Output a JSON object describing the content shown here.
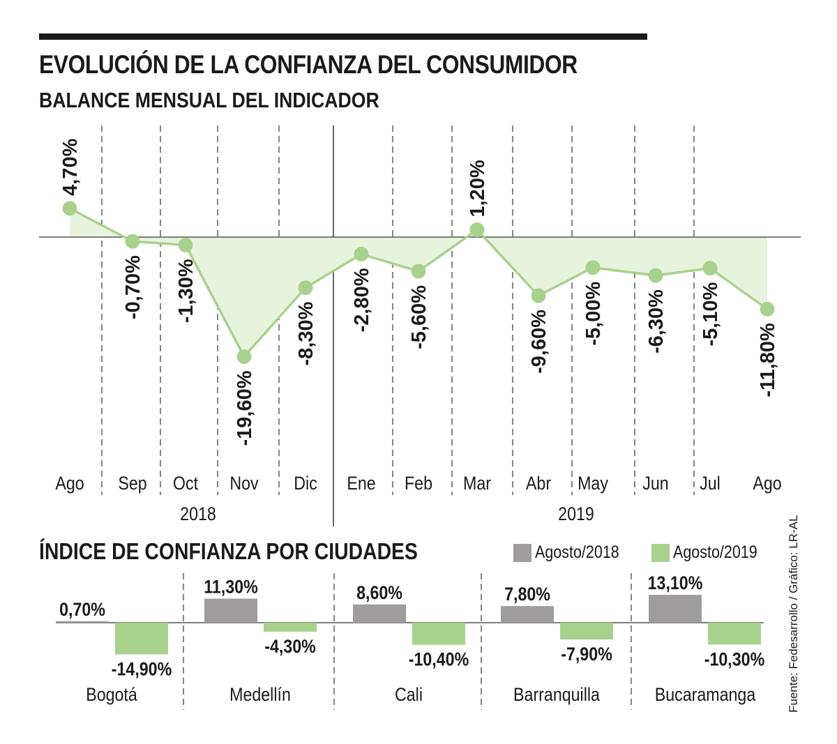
{
  "header": {
    "title": "EVOLUCIÓN DE LA CONFIANZA DEL CONSUMIDOR",
    "subtitle": "BALANCE MENSUAL DEL INDICADOR"
  },
  "cities_section": {
    "title": "ÍNDICE DE CONFIANZA POR CIUDADES",
    "legend": [
      {
        "label": "Agosto/2018",
        "color": "#a09c9e"
      },
      {
        "label": "Agosto/2019",
        "color": "#a9d18e"
      }
    ]
  },
  "source": "Fuente: Fedesarrollo / Gráfico: LR-AL",
  "colors": {
    "line": "#a9d18e",
    "area": "#e8f3de",
    "gray_bar": "#a09c9e",
    "green_bar": "#a9d18e",
    "text": "#1a1a1a"
  },
  "chart_data": [
    {
      "type": "line",
      "title": "BALANCE MENSUAL DEL INDICADOR",
      "categories": [
        "Ago",
        "Sep",
        "Oct",
        "Nov",
        "Dic",
        "Ene",
        "Feb",
        "Mar",
        "Abr",
        "May",
        "Jun",
        "Jul",
        "Ago"
      ],
      "years": [
        {
          "label": "2018",
          "months": [
            "Ago",
            "Sep",
            "Oct",
            "Nov",
            "Dic"
          ]
        },
        {
          "label": "2019",
          "months": [
            "Ene",
            "Feb",
            "Mar",
            "Abr",
            "May",
            "Jun",
            "Jul",
            "Ago"
          ]
        }
      ],
      "values": [
        4.7,
        -0.7,
        -1.3,
        -19.6,
        -8.3,
        -2.8,
        -5.6,
        1.2,
        -9.6,
        -5.0,
        -6.3,
        -5.1,
        -11.8
      ],
      "labels": [
        "4,70%",
        "-0,70%",
        "-1,30%",
        "-19,60%",
        "-8,30%",
        "-2,80%",
        "-5,60%",
        "1,20%",
        "-9,60%",
        "-5,00%",
        "-6,30%",
        "-5,10%",
        "-11,80%"
      ],
      "xlabel": "",
      "ylabel": "",
      "grid": "vertical dashed"
    },
    {
      "type": "bar",
      "title": "ÍNDICE DE CONFIANZA POR CIUDADES",
      "categories": [
        "Bogotá",
        "Medellín",
        "Cali",
        "Barranquilla",
        "Bucaramanga"
      ],
      "series": [
        {
          "name": "Agosto/2018",
          "values": [
            0.7,
            11.3,
            8.6,
            7.8,
            13.1
          ],
          "labels": [
            "0,70%",
            "11,30%",
            "8,60%",
            "7,80%",
            "13,10%"
          ]
        },
        {
          "name": "Agosto/2019",
          "values": [
            -14.9,
            -4.3,
            -10.4,
            -7.9,
            -10.3
          ],
          "labels": [
            "-14,90%",
            "-4,30%",
            "-10,40%",
            "-7,90%",
            "-10,30%"
          ]
        }
      ]
    }
  ]
}
